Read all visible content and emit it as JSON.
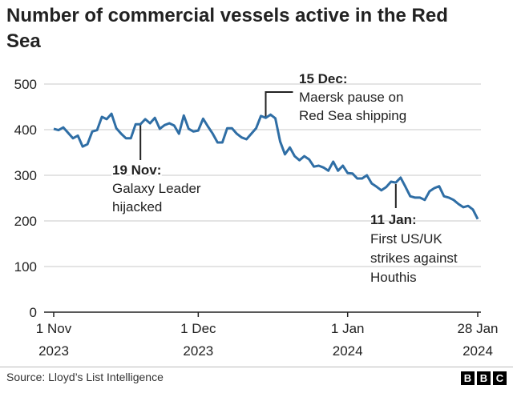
{
  "chart_data": {
    "type": "line",
    "title": "Number of commercial vessels active in the Red Sea",
    "ylim": [
      0,
      500
    ],
    "yticks": [
      "0",
      "100",
      "200",
      "300",
      "400",
      "500"
    ],
    "xticks": [
      [
        "1 Nov",
        "2023"
      ],
      [
        "1 Dec",
        "2023"
      ],
      [
        "1 Jan",
        "2024"
      ],
      [
        "28 Jan",
        "2024"
      ]
    ],
    "grid": true,
    "line_color": "#2f6ea5",
    "points": [
      [
        "2023-11-01",
        402
      ],
      [
        "2023-11-02",
        399
      ],
      [
        "2023-11-03",
        405
      ],
      [
        "2023-11-04",
        393
      ],
      [
        "2023-11-05",
        381
      ],
      [
        "2023-11-06",
        387
      ],
      [
        "2023-11-07",
        363
      ],
      [
        "2023-11-08",
        368
      ],
      [
        "2023-11-09",
        396
      ],
      [
        "2023-11-10",
        399
      ],
      [
        "2023-11-11",
        428
      ],
      [
        "2023-11-12",
        423
      ],
      [
        "2023-11-13",
        435
      ],
      [
        "2023-11-14",
        403
      ],
      [
        "2023-11-15",
        391
      ],
      [
        "2023-11-16",
        381
      ],
      [
        "2023-11-17",
        381
      ],
      [
        "2023-11-18",
        412
      ],
      [
        "2023-11-19",
        412
      ],
      [
        "2023-11-20",
        423
      ],
      [
        "2023-11-21",
        414
      ],
      [
        "2023-11-22",
        426
      ],
      [
        "2023-11-23",
        402
      ],
      [
        "2023-11-24",
        410
      ],
      [
        "2023-11-25",
        414
      ],
      [
        "2023-11-26",
        409
      ],
      [
        "2023-11-27",
        391
      ],
      [
        "2023-11-28",
        431
      ],
      [
        "2023-11-29",
        402
      ],
      [
        "2023-11-30",
        396
      ],
      [
        "2023-12-01",
        398
      ],
      [
        "2023-12-02",
        424
      ],
      [
        "2023-12-03",
        407
      ],
      [
        "2023-12-04",
        391
      ],
      [
        "2023-12-05",
        372
      ],
      [
        "2023-12-06",
        372
      ],
      [
        "2023-12-07",
        403
      ],
      [
        "2023-12-08",
        403
      ],
      [
        "2023-12-09",
        391
      ],
      [
        "2023-12-10",
        383
      ],
      [
        "2023-12-11",
        379
      ],
      [
        "2023-12-12",
        391
      ],
      [
        "2023-12-13",
        403
      ],
      [
        "2023-12-14",
        430
      ],
      [
        "2023-12-15",
        426
      ],
      [
        "2023-12-16",
        433
      ],
      [
        "2023-12-17",
        425
      ],
      [
        "2023-12-18",
        374
      ],
      [
        "2023-12-19",
        346
      ],
      [
        "2023-12-20",
        361
      ],
      [
        "2023-12-21",
        342
      ],
      [
        "2023-12-22",
        333
      ],
      [
        "2023-12-23",
        342
      ],
      [
        "2023-12-24",
        335
      ],
      [
        "2023-12-25",
        319
      ],
      [
        "2023-12-26",
        321
      ],
      [
        "2023-12-27",
        317
      ],
      [
        "2023-12-28",
        310
      ],
      [
        "2023-12-29",
        330
      ],
      [
        "2023-12-30",
        310
      ],
      [
        "2023-12-31",
        321
      ],
      [
        "2024-01-01",
        305
      ],
      [
        "2024-01-02",
        304
      ],
      [
        "2024-01-03",
        293
      ],
      [
        "2024-01-04",
        293
      ],
      [
        "2024-01-05",
        300
      ],
      [
        "2024-01-06",
        282
      ],
      [
        "2024-01-07",
        275
      ],
      [
        "2024-01-08",
        267
      ],
      [
        "2024-01-09",
        274
      ],
      [
        "2024-01-10",
        286
      ],
      [
        "2024-01-11",
        284
      ],
      [
        "2024-01-12",
        295
      ],
      [
        "2024-01-13",
        275
      ],
      [
        "2024-01-14",
        254
      ],
      [
        "2024-01-15",
        251
      ],
      [
        "2024-01-16",
        251
      ],
      [
        "2024-01-17",
        246
      ],
      [
        "2024-01-18",
        265
      ],
      [
        "2024-01-19",
        272
      ],
      [
        "2024-01-20",
        276
      ],
      [
        "2024-01-21",
        254
      ],
      [
        "2024-01-22",
        251
      ],
      [
        "2024-01-23",
        246
      ],
      [
        "2024-01-24",
        237
      ],
      [
        "2024-01-25",
        230
      ],
      [
        "2024-01-26",
        233
      ],
      [
        "2024-01-27",
        225
      ],
      [
        "2024-01-28",
        204
      ]
    ],
    "annotations": [
      {
        "date": "2023-11-19",
        "lines": [
          "19 Nov:",
          "Galaxy Leader",
          "hijacked"
        ]
      },
      {
        "date": "2023-12-15",
        "lines": [
          "15 Dec:",
          "Maersk pause on",
          "Red Sea shipping"
        ]
      },
      {
        "date": "2024-01-11",
        "lines": [
          "11 Jan:",
          "First US/UK",
          "strikes against",
          "Houthis"
        ]
      }
    ]
  },
  "footer": {
    "source": "Source: Lloyd’s List Intelligence",
    "logo": [
      "B",
      "B",
      "C"
    ]
  }
}
